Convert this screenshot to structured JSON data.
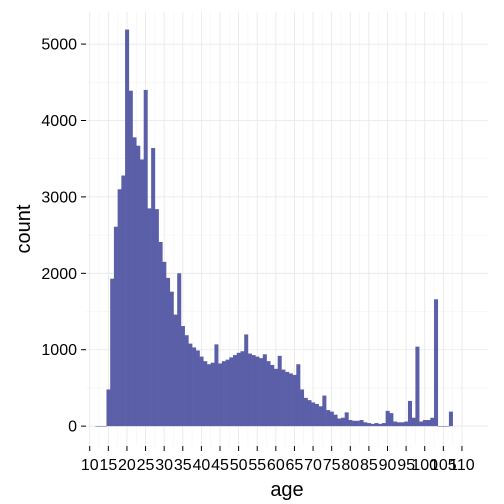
{
  "chart_data": {
    "type": "bar",
    "title": "",
    "xlabel": "age",
    "ylabel": "count",
    "xlim": [
      9,
      117
    ],
    "ylim": [
      -260,
      5420
    ],
    "grid": true,
    "x_ticks": [
      10,
      15,
      20,
      25,
      30,
      35,
      40,
      45,
      50,
      55,
      60,
      65,
      70,
      75,
      80,
      85,
      90,
      95,
      100,
      105,
      110
    ],
    "x_tick_labels": [
      "10",
      "15",
      "20",
      "25",
      "30",
      "35",
      "40",
      "45",
      "50",
      "55",
      "60",
      "65",
      "70",
      "75",
      "80",
      "85",
      "90",
      "95",
      "100",
      "105",
      "110"
    ],
    "y_ticks": [
      0,
      1000,
      2000,
      3000,
      4000,
      5000
    ],
    "y_tick_labels": [
      "0",
      "1000",
      "2000",
      "3000",
      "4000",
      "5000"
    ],
    "bar_color": "#5a5fa8",
    "bin_width": 1,
    "bins": [
      {
        "x": 12,
        "count": 0
      },
      {
        "x": 13,
        "count": 0
      },
      {
        "x": 14,
        "count": 0
      },
      {
        "x": 15,
        "count": 480
      },
      {
        "x": 16,
        "count": 1930
      },
      {
        "x": 17,
        "count": 2610
      },
      {
        "x": 18,
        "count": 3100
      },
      {
        "x": 19,
        "count": 3280
      },
      {
        "x": 20,
        "count": 5190
      },
      {
        "x": 21,
        "count": 4390
      },
      {
        "x": 22,
        "count": 3780
      },
      {
        "x": 23,
        "count": 3670
      },
      {
        "x": 24,
        "count": 3490
      },
      {
        "x": 25,
        "count": 4400
      },
      {
        "x": 26,
        "count": 2850
      },
      {
        "x": 27,
        "count": 3640
      },
      {
        "x": 28,
        "count": 2840
      },
      {
        "x": 29,
        "count": 2410
      },
      {
        "x": 30,
        "count": 2150
      },
      {
        "x": 31,
        "count": 1940
      },
      {
        "x": 32,
        "count": 1760
      },
      {
        "x": 33,
        "count": 1460
      },
      {
        "x": 34,
        "count": 2000
      },
      {
        "x": 35,
        "count": 1310
      },
      {
        "x": 36,
        "count": 1190
      },
      {
        "x": 37,
        "count": 1080
      },
      {
        "x": 38,
        "count": 1030
      },
      {
        "x": 39,
        "count": 990
      },
      {
        "x": 40,
        "count": 910
      },
      {
        "x": 41,
        "count": 850
      },
      {
        "x": 42,
        "count": 810
      },
      {
        "x": 43,
        "count": 830
      },
      {
        "x": 44,
        "count": 1070
      },
      {
        "x": 45,
        "count": 820
      },
      {
        "x": 46,
        "count": 850
      },
      {
        "x": 47,
        "count": 870
      },
      {
        "x": 48,
        "count": 900
      },
      {
        "x": 49,
        "count": 930
      },
      {
        "x": 50,
        "count": 960
      },
      {
        "x": 51,
        "count": 980
      },
      {
        "x": 52,
        "count": 1200
      },
      {
        "x": 53,
        "count": 950
      },
      {
        "x": 54,
        "count": 930
      },
      {
        "x": 55,
        "count": 910
      },
      {
        "x": 56,
        "count": 890
      },
      {
        "x": 57,
        "count": 940
      },
      {
        "x": 58,
        "count": 850
      },
      {
        "x": 59,
        "count": 800
      },
      {
        "x": 60,
        "count": 750
      },
      {
        "x": 61,
        "count": 920
      },
      {
        "x": 62,
        "count": 740
      },
      {
        "x": 63,
        "count": 710
      },
      {
        "x": 64,
        "count": 690
      },
      {
        "x": 65,
        "count": 670
      },
      {
        "x": 66,
        "count": 810
      },
      {
        "x": 67,
        "count": 480
      },
      {
        "x": 68,
        "count": 370
      },
      {
        "x": 69,
        "count": 340
      },
      {
        "x": 70,
        "count": 310
      },
      {
        "x": 71,
        "count": 290
      },
      {
        "x": 72,
        "count": 260
      },
      {
        "x": 73,
        "count": 400
      },
      {
        "x": 74,
        "count": 210
      },
      {
        "x": 75,
        "count": 190
      },
      {
        "x": 76,
        "count": 150
      },
      {
        "x": 77,
        "count": 100
      },
      {
        "x": 78,
        "count": 110
      },
      {
        "x": 79,
        "count": 180
      },
      {
        "x": 80,
        "count": 80
      },
      {
        "x": 81,
        "count": 70
      },
      {
        "x": 82,
        "count": 70
      },
      {
        "x": 83,
        "count": 80
      },
      {
        "x": 84,
        "count": 50
      },
      {
        "x": 85,
        "count": 40
      },
      {
        "x": 86,
        "count": 30
      },
      {
        "x": 87,
        "count": 40
      },
      {
        "x": 88,
        "count": 30
      },
      {
        "x": 89,
        "count": 40
      },
      {
        "x": 90,
        "count": 200
      },
      {
        "x": 91,
        "count": 170
      },
      {
        "x": 92,
        "count": 60
      },
      {
        "x": 93,
        "count": 50
      },
      {
        "x": 94,
        "count": 50
      },
      {
        "x": 95,
        "count": 60
      },
      {
        "x": 96,
        "count": 330
      },
      {
        "x": 97,
        "count": 110
      },
      {
        "x": 98,
        "count": 1040
      },
      {
        "x": 99,
        "count": 60
      },
      {
        "x": 100,
        "count": 80
      },
      {
        "x": 101,
        "count": 80
      },
      {
        "x": 102,
        "count": 110
      },
      {
        "x": 103,
        "count": 1660
      },
      {
        "x": 104,
        "count": 0
      },
      {
        "x": 105,
        "count": 0
      },
      {
        "x": 106,
        "count": 0
      },
      {
        "x": 107,
        "count": 190
      }
    ]
  }
}
